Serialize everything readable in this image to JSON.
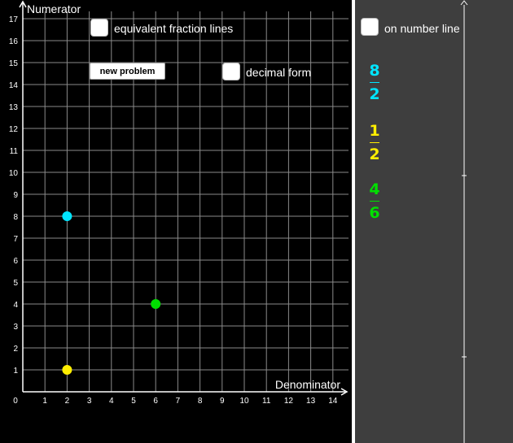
{
  "axes": {
    "y_label": "Numerator",
    "x_label": "Denominator",
    "x_ticks": [
      "0",
      "1",
      "2",
      "3",
      "4",
      "5",
      "6",
      "7",
      "8",
      "9",
      "10",
      "11",
      "12",
      "13",
      "14"
    ],
    "y_ticks": [
      "1",
      "2",
      "3",
      "4",
      "5",
      "6",
      "7",
      "8",
      "9",
      "10",
      "11",
      "12",
      "13",
      "14",
      "15",
      "16",
      "17"
    ]
  },
  "controls": {
    "equivalent_lines_label": "equivalent fraction lines",
    "new_problem_label": "new problem",
    "decimal_form_label": "decimal form",
    "number_line_label": "on number line"
  },
  "points": [
    {
      "denominator": 2,
      "numerator": 8,
      "color": "#00e5ff"
    },
    {
      "denominator": 2,
      "numerator": 1,
      "color": "#ffee00"
    },
    {
      "denominator": 6,
      "numerator": 4,
      "color": "#00e000"
    }
  ],
  "fractions": [
    {
      "numerator": "8",
      "denominator": "2",
      "color": "#00e5ff"
    },
    {
      "numerator": "1",
      "denominator": "2",
      "color": "#ffee00"
    },
    {
      "numerator": "4",
      "denominator": "6",
      "color": "#00e000"
    }
  ],
  "chart_data": {
    "type": "scatter",
    "xlabel": "Denominator",
    "ylabel": "Numerator",
    "xlim": [
      0,
      14
    ],
    "ylim": [
      0,
      17
    ],
    "grid": true,
    "series": [
      {
        "x": [
          2
        ],
        "y": [
          8
        ],
        "color": "#00e5ff"
      },
      {
        "x": [
          2
        ],
        "y": [
          1
        ],
        "color": "#ffee00"
      },
      {
        "x": [
          6
        ],
        "y": [
          4
        ],
        "color": "#00e000"
      }
    ]
  }
}
